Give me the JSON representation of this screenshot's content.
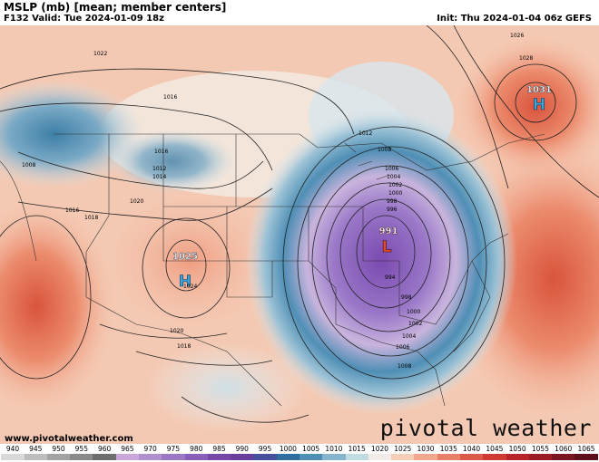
{
  "header": {
    "title": "MSLP (mb) [mean; member centers]",
    "valid": "F132 Valid: Tue 2024-01-09 18z",
    "init": "Init: Thu 2024-01-04 06z GEFS"
  },
  "watermark": {
    "url": "www.pivotalweather.com",
    "logo": "pivotal weather"
  },
  "centers": [
    {
      "kind": "H",
      "value": "1025",
      "color": "#3aa6e0"
    },
    {
      "kind": "L",
      "value": "991",
      "color": "#e84a2a"
    },
    {
      "kind": "H",
      "value": "1031",
      "color": "#3aa6e0"
    }
  ],
  "isobar_labels": [
    "1022",
    "1016",
    "1016",
    "1012",
    "1014",
    "1016",
    "1018",
    "1020",
    "1024",
    "1020",
    "1018",
    "1012",
    "1008",
    "1006",
    "1004",
    "1002",
    "1000",
    "998",
    "996",
    "994",
    "998",
    "1000",
    "1002",
    "1004",
    "1006",
    "1008",
    "1026",
    "1028",
    "1008"
  ],
  "colorbar": {
    "labels": [
      "940",
      "945",
      "950",
      "955",
      "960",
      "965",
      "970",
      "975",
      "980",
      "985",
      "990",
      "995",
      "1000",
      "1005",
      "1010",
      "1015",
      "1020",
      "1025",
      "1030",
      "1035",
      "1040",
      "1045",
      "1050",
      "1055",
      "1060",
      "1065"
    ],
    "colors": [
      "#d9d9d9",
      "#bdbdbd",
      "#a3a3a3",
      "#8a8a8a",
      "#6e6e6e",
      "#c9a8d9",
      "#b190cf",
      "#9c78c4",
      "#875fb8",
      "#7747a8",
      "#6a3e9e",
      "#48509e",
      "#2f6f9f",
      "#4f8fb5",
      "#86b4cc",
      "#c2dbe3",
      "#f2ede8",
      "#f7cdb8",
      "#f2a88e",
      "#e88068",
      "#dc5a48",
      "#cf3a33",
      "#b9262a",
      "#9a1c24",
      "#7a1520",
      "#5e0f1a"
    ]
  }
}
